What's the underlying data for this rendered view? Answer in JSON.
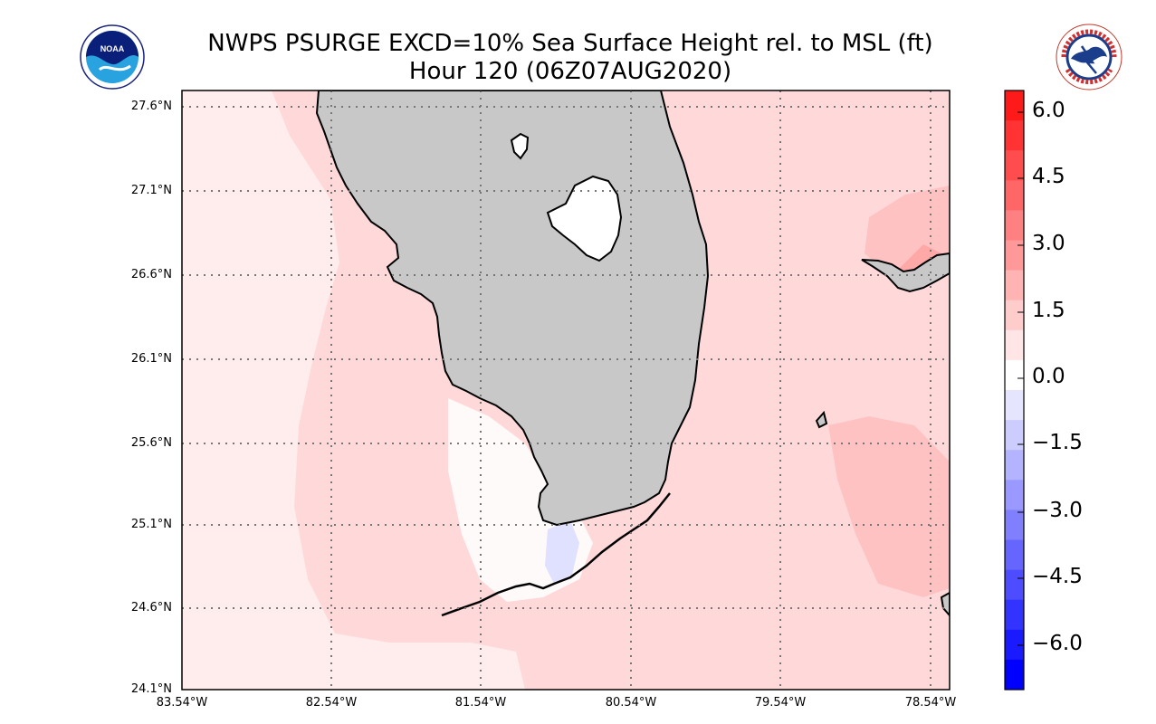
{
  "title": {
    "line1": "NWPS PSURGE EXCD=10% Sea Surface Height rel. to MSL (ft)",
    "line2": "Hour 120 (06Z07AUG2020)"
  },
  "logos": {
    "left": {
      "name": "noaa-logo",
      "text": "NOAA"
    },
    "right": {
      "name": "nws-logo",
      "text": "NATIONAL WEATHER SERVICE"
    }
  },
  "map": {
    "latitudes": [
      "27.6°N",
      "27.1°N",
      "26.6°N",
      "26.1°N",
      "25.6°N",
      "25.1°N",
      "24.6°N",
      "24.1°N"
    ],
    "longitudes": [
      "83.54°W",
      "82.54°W",
      "81.54°W",
      "80.54°W",
      "79.54°W",
      "78.54°W"
    ],
    "land_color": "#c8c8c8",
    "gridline_style": "dotted"
  },
  "colorbar": {
    "labels": [
      "6.0",
      "4.5",
      "3.0",
      "1.5",
      "0.0",
      "−1.5",
      "−3.0",
      "−4.5",
      "−6.0"
    ],
    "colors": [
      "#ff1a1a",
      "#ff3333",
      "#ff4d4d",
      "#ff6666",
      "#ff8080",
      "#ff9999",
      "#ffb3b3",
      "#ffcccc",
      "#ffe5e5",
      "#ffffff",
      "#e5e5ff",
      "#ccccff",
      "#b3b3ff",
      "#9999ff",
      "#8080ff",
      "#6666ff",
      "#4d4dff",
      "#3333ff",
      "#1a1aff",
      "#0000ff"
    ]
  }
}
